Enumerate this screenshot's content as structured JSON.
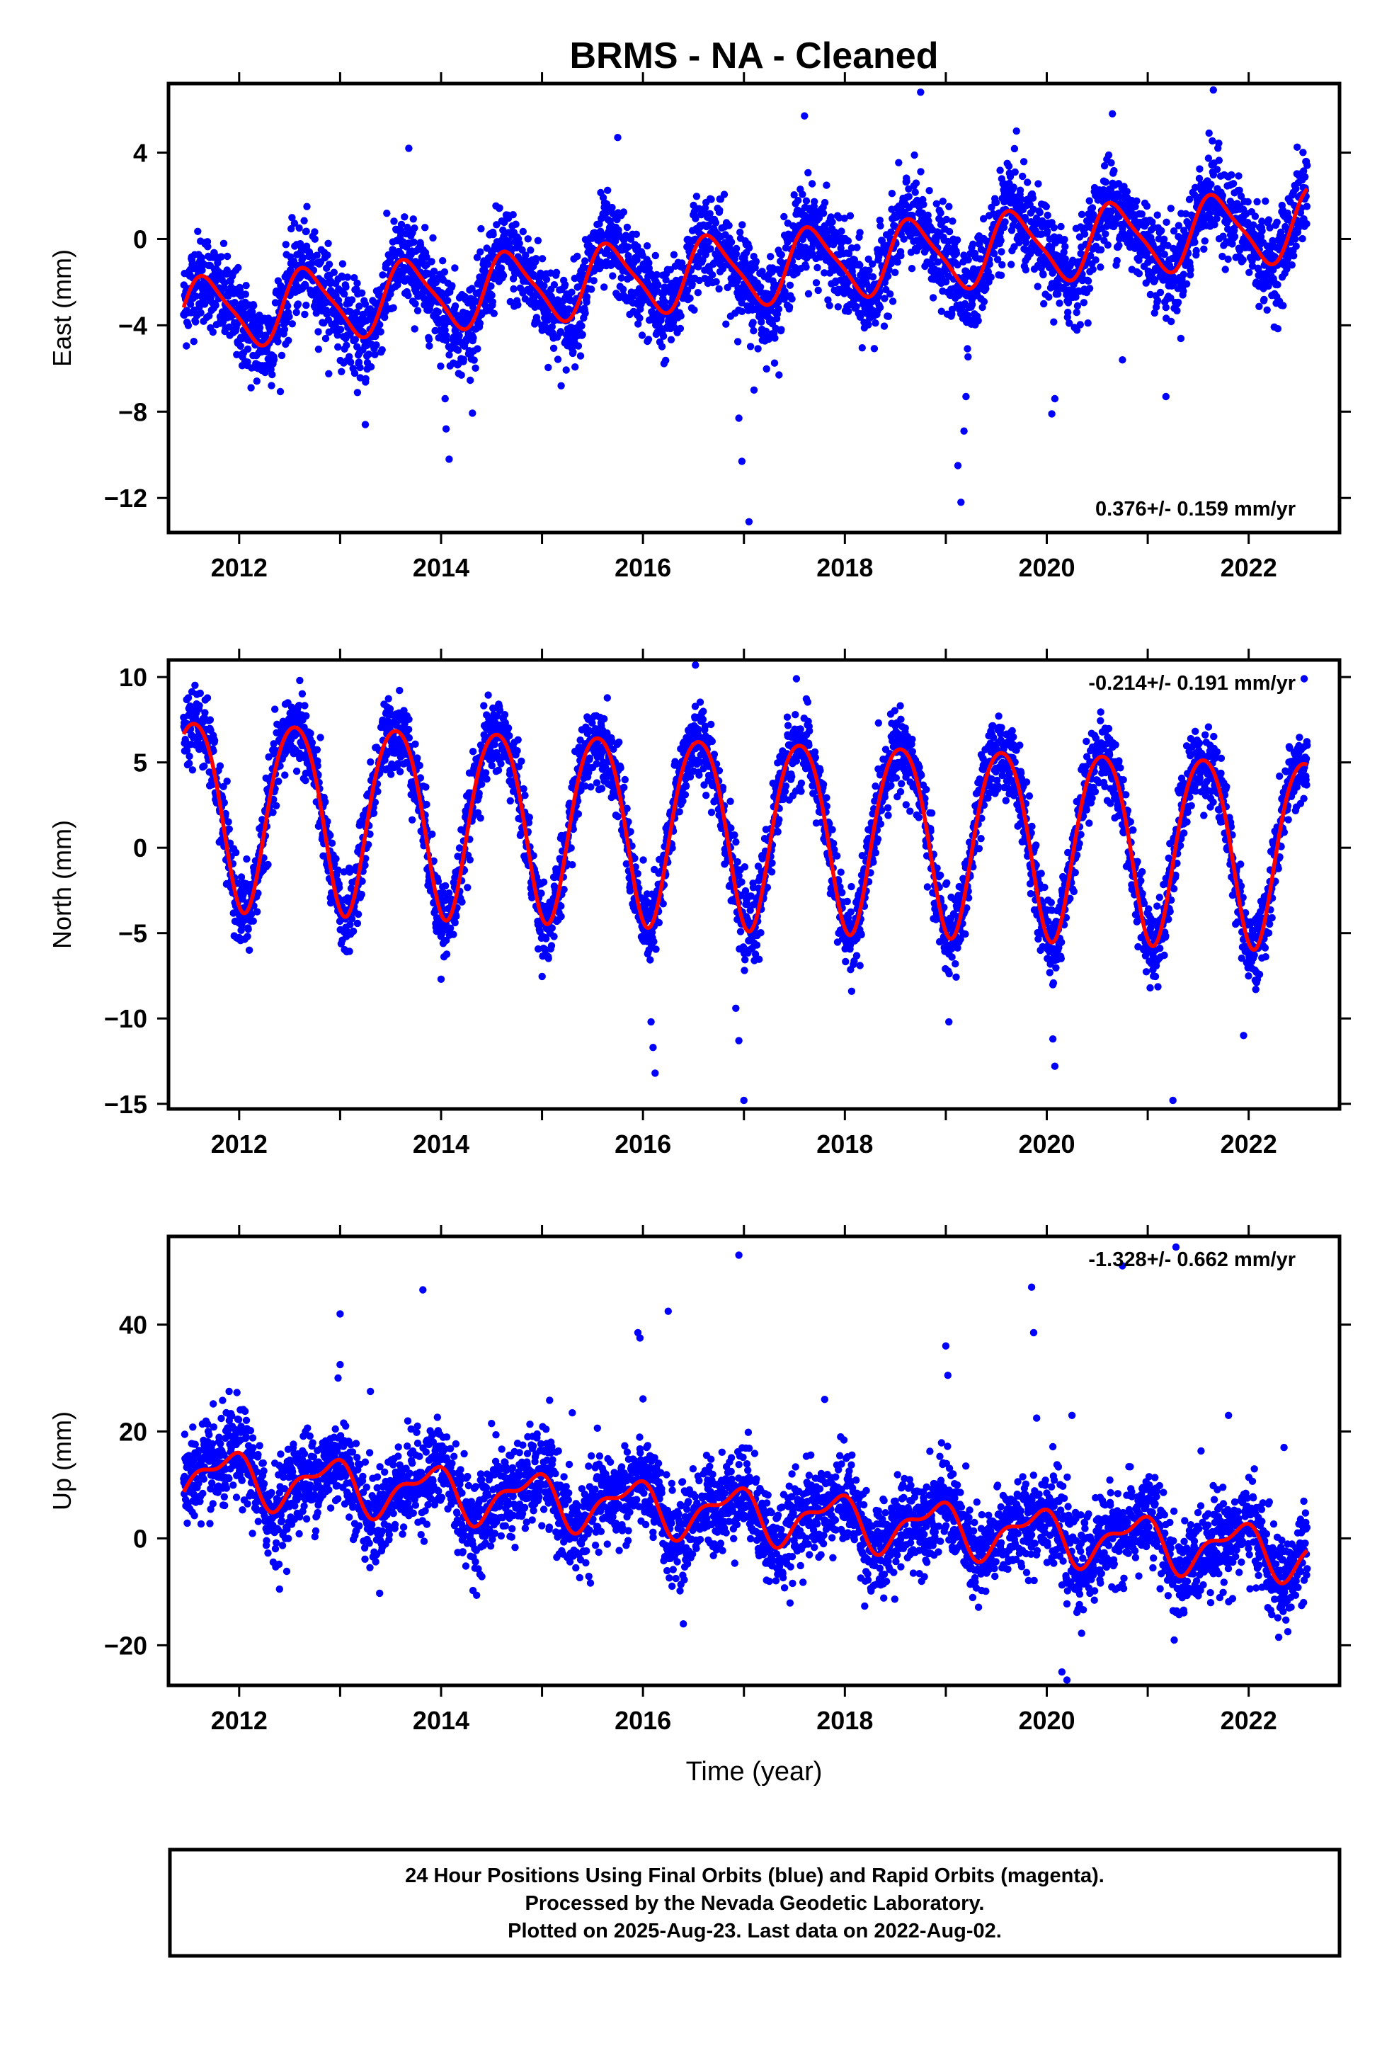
{
  "title": "BRMS  - NA - Cleaned",
  "footer_lines": [
    "24 Hour Positions Using Final Orbits (blue) and Rapid Orbits (magenta).",
    "Processed by the Nevada Geodetic Laboratory.",
    "Plotted on 2025-Aug-23. Last data on 2022-Aug-02."
  ],
  "colors": {
    "data": "#0000ff",
    "model": "#ff0000",
    "frame": "#000000"
  },
  "chart_data": [
    {
      "type": "scatter",
      "ylabel": "East (mm)",
      "rate_label": "0.376+/- 0.159 mm/yr",
      "rate_position": "bottom-right",
      "x_ticks": [
        "2012",
        "2014",
        "2016",
        "2018",
        "2020",
        "2022"
      ],
      "y_ticks": [
        "4",
        "0",
        "−4",
        "−8",
        "−12"
      ],
      "xlim": [
        2011.3,
        2022.9
      ],
      "ylim": [
        -13.6,
        7.2
      ],
      "x_range": [
        2011.45,
        2022.58
      ],
      "model": {
        "intercept": -1.4,
        "rate": 0.376,
        "ann_amp": 1.6,
        "ann_peak": 0.68,
        "semi_amp": 0.35,
        "semi_peak": 0.55
      },
      "scatter_sd": 1.05,
      "outliers": [
        [
          2014.08,
          -10.2
        ],
        [
          2014.05,
          -8.8
        ],
        [
          2014.04,
          -7.4
        ],
        [
          2017.05,
          -13.1
        ],
        [
          2016.98,
          -10.3
        ],
        [
          2016.95,
          -8.3
        ],
        [
          2017.1,
          -7.0
        ],
        [
          2019.15,
          -12.2
        ],
        [
          2019.12,
          -10.5
        ],
        [
          2019.18,
          -8.9
        ],
        [
          2019.2,
          -7.3
        ],
        [
          2018.75,
          6.8
        ],
        [
          2020.05,
          -8.1
        ],
        [
          2020.08,
          -7.4
        ],
        [
          2021.18,
          -7.3
        ],
        [
          2020.75,
          -5.6
        ],
        [
          2013.25,
          -8.6
        ],
        [
          2021.65,
          6.9
        ],
        [
          2013.68,
          4.2
        ],
        [
          2015.75,
          4.7
        ],
        [
          2017.6,
          5.7
        ],
        [
          2019.7,
          5.0
        ],
        [
          2020.65,
          5.8
        ]
      ]
    },
    {
      "type": "scatter",
      "ylabel": "North (mm)",
      "rate_label": "-0.214+/- 0.191 mm/yr",
      "rate_position": "top-right",
      "x_ticks": [
        "2012",
        "2014",
        "2016",
        "2018",
        "2020",
        "2022"
      ],
      "y_ticks": [
        "10",
        "5",
        "0",
        "−5",
        "−10",
        "−15"
      ],
      "xlim": [
        2011.3,
        2022.9
      ],
      "ylim": [
        -15.3,
        11.0
      ],
      "x_range": [
        2011.45,
        2022.58
      ],
      "model": {
        "intercept": 1.2,
        "rate": -0.214,
        "ann_amp": 5.5,
        "ann_peak": 0.55,
        "semi_amp": 0.6,
        "semi_peak": 0.3
      },
      "scatter_sd": 1.1,
      "outliers": [
        [
          2016.12,
          -13.2
        ],
        [
          2016.1,
          -11.7
        ],
        [
          2016.08,
          -10.2
        ],
        [
          2017.0,
          -14.8
        ],
        [
          2016.95,
          -11.3
        ],
        [
          2016.92,
          -9.4
        ],
        [
          2019.03,
          -10.2
        ],
        [
          2020.08,
          -12.8
        ],
        [
          2020.06,
          -11.2
        ],
        [
          2021.25,
          -14.8
        ],
        [
          2021.95,
          -11.0
        ],
        [
          2016.52,
          10.7
        ],
        [
          2012.6,
          9.8
        ],
        [
          2017.52,
          9.9
        ],
        [
          2022.55,
          9.9
        ],
        [
          2014.0,
          -7.7
        ],
        [
          2012.1,
          -6.0
        ],
        [
          2018.15,
          -6.9
        ]
      ]
    },
    {
      "type": "scatter",
      "ylabel": "Up (mm)",
      "xlabel": "Time (year)",
      "rate_label": "-1.328+/- 0.662 mm/yr",
      "rate_position": "top-right",
      "x_ticks": [
        "2012",
        "2014",
        "2016",
        "2018",
        "2020",
        "2022"
      ],
      "y_ticks": [
        "40",
        "20",
        "0",
        "−20"
      ],
      "xlim": [
        2011.3,
        2022.9
      ],
      "ylim": [
        -27.5,
        56.5
      ],
      "x_range": [
        2011.45,
        2022.58
      ],
      "model": {
        "intercept": 4.6,
        "rate": -1.328,
        "ann_amp": 4.3,
        "ann_peak": 0.88,
        "semi_amp": 2.0,
        "semi_peak": 0.05
      },
      "scatter_sd": 4.3,
      "outliers": [
        [
          2016.95,
          53.0
        ],
        [
          2020.75,
          51.0
        ],
        [
          2021.28,
          54.5
        ],
        [
          2013.82,
          46.5
        ],
        [
          2019.85,
          47.0
        ],
        [
          2019.87,
          38.5
        ],
        [
          2013.0,
          42.0
        ],
        [
          2016.25,
          42.5
        ],
        [
          2015.95,
          38.5
        ],
        [
          2015.97,
          37.5
        ],
        [
          2013.0,
          32.5
        ],
        [
          2012.98,
          30.0
        ],
        [
          2019.0,
          36.0
        ],
        [
          2019.02,
          30.5
        ],
        [
          2013.3,
          27.5
        ],
        [
          2014.5,
          21.5
        ],
        [
          2015.3,
          23.5
        ],
        [
          2017.8,
          26.0
        ],
        [
          2019.9,
          22.5
        ],
        [
          2020.25,
          23.0
        ],
        [
          2021.8,
          23.0
        ],
        [
          2022.35,
          17.0
        ],
        [
          2020.2,
          -26.5
        ],
        [
          2020.15,
          -25.0
        ],
        [
          2016.4,
          -16.0
        ],
        [
          2012.4,
          -9.5
        ],
        [
          2011.9,
          27.5
        ]
      ]
    }
  ]
}
